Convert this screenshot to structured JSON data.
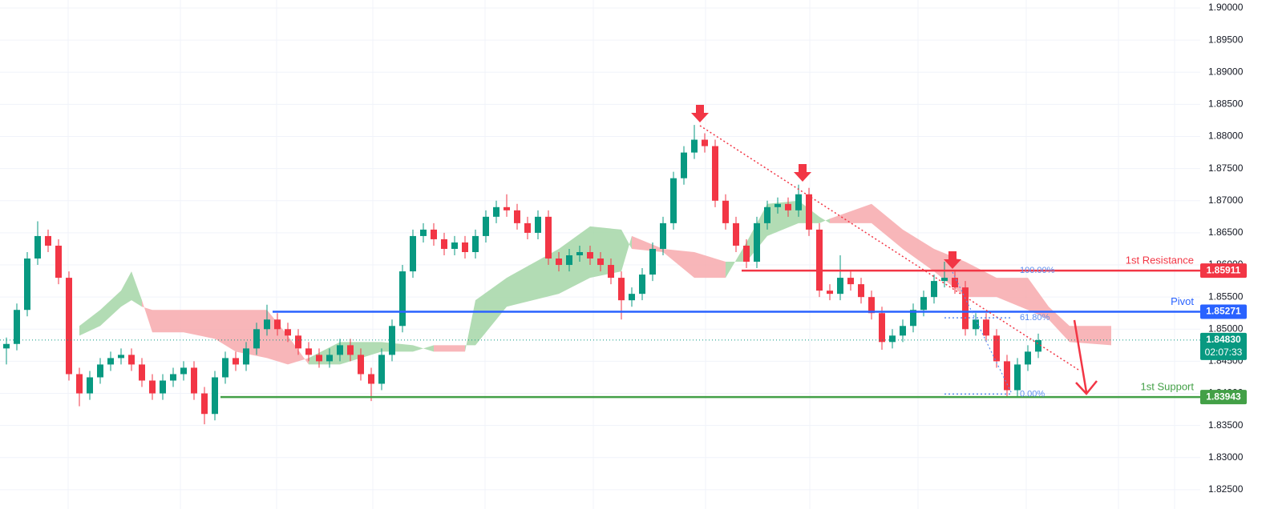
{
  "chart_data": {
    "type": "candlestick",
    "ylim": [
      1.822,
      1.90125
    ],
    "yticks": [
      {
        "value": 1.825,
        "label": "1.82500"
      },
      {
        "value": 1.83,
        "label": "1.83000"
      },
      {
        "value": 1.835,
        "label": "1.83500"
      },
      {
        "value": 1.84,
        "label": "1.84000"
      },
      {
        "value": 1.845,
        "label": "1.84500"
      },
      {
        "value": 1.85,
        "label": "1.85000"
      },
      {
        "value": 1.855,
        "label": "1.85500"
      },
      {
        "value": 1.86,
        "label": "1.86000"
      },
      {
        "value": 1.865,
        "label": "1.86500"
      },
      {
        "value": 1.87,
        "label": "1.87000"
      },
      {
        "value": 1.875,
        "label": "1.87500"
      },
      {
        "value": 1.88,
        "label": "1.88000"
      },
      {
        "value": 1.885,
        "label": "1.88500"
      },
      {
        "value": 1.89,
        "label": "1.89000"
      },
      {
        "value": 1.895,
        "label": "1.89500"
      },
      {
        "value": 1.9,
        "label": "1.90000"
      }
    ],
    "grid": true,
    "up_color": "#089981",
    "down_color": "#f23645",
    "open": [
      1.847,
      1.8477,
      1.853,
      1.861,
      1.8645,
      1.863,
      1.858,
      1.843,
      1.84,
      1.8425,
      1.8445,
      1.8455,
      1.846,
      1.8445,
      1.842,
      1.84,
      1.842,
      1.843,
      1.844,
      1.84,
      1.8368,
      1.8425,
      1.8455,
      1.8445,
      1.847,
      1.85,
      1.8515,
      1.85,
      1.849,
      1.847,
      1.846,
      1.845,
      1.846,
      1.8475,
      1.846,
      1.843,
      1.8415,
      1.846,
      1.8505,
      1.859,
      1.8645,
      1.8655,
      1.864,
      1.8625,
      1.8635,
      1.862,
      1.8645,
      1.8675,
      1.869,
      1.8685,
      1.8665,
      1.865,
      1.8675,
      1.861,
      1.86,
      1.8615,
      1.862,
      1.861,
      1.86,
      1.858,
      1.8545,
      1.8555,
      1.8585,
      1.8625,
      1.8665,
      1.8735,
      1.8775,
      1.8795,
      1.8785,
      1.87,
      1.8665,
      1.863,
      1.8605,
      1.8665,
      1.869,
      1.8695,
      1.8685,
      1.871,
      1.8655,
      1.856,
      1.8555,
      1.858,
      1.857,
      1.855,
      1.8525,
      1.848,
      1.849,
      1.8505,
      1.853,
      1.855,
      1.8575,
      1.858,
      1.8565,
      1.85,
      1.8515,
      1.849,
      1.845,
      1.8405,
      1.8445,
      1.8465
    ],
    "high": [
      1.8487,
      1.854,
      1.862,
      1.8668,
      1.8655,
      1.864,
      1.859,
      1.844,
      1.8435,
      1.8455,
      1.8465,
      1.847,
      1.847,
      1.8455,
      1.843,
      1.843,
      1.844,
      1.845,
      1.845,
      1.841,
      1.8435,
      1.8465,
      1.8465,
      1.848,
      1.851,
      1.8538,
      1.8525,
      1.851,
      1.85,
      1.848,
      1.847,
      1.847,
      1.8485,
      1.8485,
      1.847,
      1.844,
      1.847,
      1.8515,
      1.86,
      1.8655,
      1.8665,
      1.8665,
      1.865,
      1.8645,
      1.8645,
      1.8655,
      1.8685,
      1.87,
      1.871,
      1.8695,
      1.8675,
      1.8685,
      1.8685,
      1.862,
      1.8625,
      1.863,
      1.863,
      1.862,
      1.861,
      1.859,
      1.8565,
      1.8595,
      1.8635,
      1.8675,
      1.8745,
      1.8785,
      1.8818,
      1.8805,
      1.8795,
      1.871,
      1.8675,
      1.864,
      1.8675,
      1.87,
      1.8705,
      1.8705,
      1.8725,
      1.872,
      1.8665,
      1.857,
      1.8615,
      1.859,
      1.858,
      1.856,
      1.8535,
      1.85,
      1.8515,
      1.854,
      1.856,
      1.8585,
      1.8605,
      1.859,
      1.8575,
      1.8525,
      1.8525,
      1.85,
      1.846,
      1.8455,
      1.8475,
      1.8493
    ],
    "low": [
      1.8445,
      1.8467,
      1.852,
      1.86,
      1.862,
      1.857,
      1.842,
      1.838,
      1.839,
      1.8415,
      1.8435,
      1.8445,
      1.8435,
      1.841,
      1.839,
      1.839,
      1.841,
      1.842,
      1.839,
      1.8352,
      1.8358,
      1.8415,
      1.8435,
      1.8435,
      1.846,
      1.849,
      1.849,
      1.848,
      1.846,
      1.845,
      1.844,
      1.844,
      1.845,
      1.845,
      1.842,
      1.8388,
      1.8405,
      1.845,
      1.8495,
      1.858,
      1.8635,
      1.863,
      1.8615,
      1.8615,
      1.861,
      1.861,
      1.8635,
      1.8665,
      1.8675,
      1.8655,
      1.864,
      1.864,
      1.86,
      1.859,
      1.859,
      1.8605,
      1.86,
      1.859,
      1.857,
      1.8515,
      1.8535,
      1.8545,
      1.8575,
      1.8615,
      1.8655,
      1.8725,
      1.8765,
      1.8775,
      1.869,
      1.8655,
      1.862,
      1.8595,
      1.8595,
      1.8655,
      1.868,
      1.8675,
      1.8675,
      1.8645,
      1.855,
      1.8545,
      1.8545,
      1.856,
      1.854,
      1.8515,
      1.8468,
      1.847,
      1.848,
      1.8495,
      1.852,
      1.854,
      1.8565,
      1.8555,
      1.849,
      1.849,
      1.848,
      1.844,
      1.8395,
      1.8395,
      1.8435,
      1.8455
    ],
    "close": [
      1.8477,
      1.853,
      1.861,
      1.8645,
      1.863,
      1.858,
      1.843,
      1.84,
      1.8425,
      1.8445,
      1.8455,
      1.846,
      1.8445,
      1.842,
      1.84,
      1.842,
      1.843,
      1.844,
      1.84,
      1.8368,
      1.8425,
      1.8455,
      1.8445,
      1.847,
      1.85,
      1.8515,
      1.85,
      1.849,
      1.847,
      1.846,
      1.845,
      1.846,
      1.8475,
      1.846,
      1.843,
      1.8415,
      1.846,
      1.8505,
      1.859,
      1.8645,
      1.8655,
      1.864,
      1.8625,
      1.8635,
      1.862,
      1.8645,
      1.8675,
      1.869,
      1.8685,
      1.8665,
      1.865,
      1.8675,
      1.861,
      1.86,
      1.8615,
      1.862,
      1.861,
      1.86,
      1.858,
      1.8545,
      1.8555,
      1.8585,
      1.8625,
      1.8665,
      1.8735,
      1.8775,
      1.8795,
      1.8785,
      1.87,
      1.8665,
      1.863,
      1.8605,
      1.8665,
      1.869,
      1.8695,
      1.8685,
      1.871,
      1.8655,
      1.856,
      1.8555,
      1.858,
      1.857,
      1.855,
      1.8525,
      1.848,
      1.849,
      1.8505,
      1.853,
      1.855,
      1.8575,
      1.858,
      1.8565,
      1.85,
      1.8515,
      1.849,
      1.845,
      1.8405,
      1.8445,
      1.8465,
      1.8483
    ],
    "cloud": {
      "up_color": "#a5d6a7",
      "down_color": "#f7a9ad",
      "x": [
        7,
        9,
        11,
        12,
        13,
        14,
        17,
        20,
        22,
        25,
        27,
        29,
        32,
        36,
        39,
        41,
        44,
        45,
        48,
        53,
        56,
        59,
        60,
        63,
        66,
        69,
        71,
        73,
        76,
        78,
        79,
        83,
        86,
        89,
        92,
        95,
        98,
        100,
        102,
        106
      ],
      "span_a": [
        1.8505,
        1.853,
        1.856,
        1.859,
        1.8545,
        1.8495,
        1.8495,
        1.8485,
        1.8465,
        1.8455,
        1.8445,
        1.8455,
        1.848,
        1.848,
        1.8475,
        1.8465,
        1.8465,
        1.8545,
        1.858,
        1.8625,
        1.866,
        1.8655,
        1.8625,
        1.862,
        1.858,
        1.858,
        1.8635,
        1.8695,
        1.87,
        1.8675,
        1.8665,
        1.8665,
        1.8625,
        1.859,
        1.855,
        1.855,
        1.853,
        1.8515,
        1.848,
        1.8475
      ],
      "span_b": [
        1.849,
        1.8505,
        1.8535,
        1.8545,
        1.8535,
        1.853,
        1.853,
        1.853,
        1.853,
        1.853,
        1.849,
        1.8445,
        1.8445,
        1.8465,
        1.8465,
        1.8475,
        1.8475,
        1.8475,
        1.8535,
        1.8555,
        1.858,
        1.859,
        1.8645,
        1.8625,
        1.862,
        1.8605,
        1.8605,
        1.8645,
        1.8665,
        1.8665,
        1.8672,
        1.8695,
        1.8655,
        1.8625,
        1.8605,
        1.858,
        1.858,
        1.8535,
        1.8505,
        1.8505
      ]
    },
    "levels": [
      {
        "name": "1st Resistance",
        "value": 1.85911,
        "color": "#f23645"
      },
      {
        "name": "Pivot",
        "value": 1.85271,
        "color": "#2962ff"
      },
      {
        "name": "1st Support",
        "value": 1.83943,
        "color": "#43a047"
      }
    ],
    "last_price": {
      "value": 1.8483,
      "label": "1.84830",
      "countdown": "02:07:33",
      "color": "#089981"
    },
    "fib": {
      "high": 1.85911,
      "low": 1.8399,
      "color": "#5b8def",
      "levels": [
        {
          "value": 100,
          "label": "100.00%"
        },
        {
          "value": 61.8,
          "label": "61.80%"
        },
        {
          "value": 0,
          "label": "0.00%"
        }
      ]
    }
  }
}
